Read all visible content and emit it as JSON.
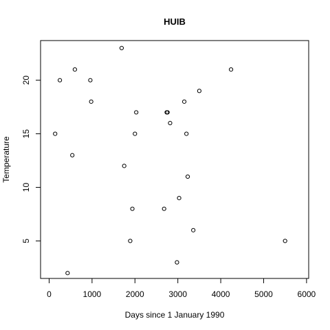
{
  "chart_data": {
    "type": "scatter",
    "title": "HUIB",
    "xlabel": "Days since 1 January 1990",
    "ylabel": "Temperature",
    "xlim": [
      -200,
      6050
    ],
    "ylim": [
      1.5,
      23.7
    ],
    "xticks": [
      0,
      1000,
      2000,
      3000,
      4000,
      5000,
      6000
    ],
    "yticks": [
      5,
      10,
      15,
      20
    ],
    "grid": false,
    "legend": "none",
    "marker": "open-circle",
    "points": [
      {
        "x": 140,
        "y": 15
      },
      {
        "x": 250,
        "y": 20
      },
      {
        "x": 430,
        "y": 2
      },
      {
        "x": 540,
        "y": 13
      },
      {
        "x": 600,
        "y": 21
      },
      {
        "x": 960,
        "y": 20
      },
      {
        "x": 980,
        "y": 18
      },
      {
        "x": 1690,
        "y": 23
      },
      {
        "x": 1750,
        "y": 12
      },
      {
        "x": 1890,
        "y": 5
      },
      {
        "x": 1940,
        "y": 8
      },
      {
        "x": 2000,
        "y": 15
      },
      {
        "x": 2030,
        "y": 17
      },
      {
        "x": 2680,
        "y": 8
      },
      {
        "x": 2740,
        "y": 17
      },
      {
        "x": 2760,
        "y": 17
      },
      {
        "x": 2820,
        "y": 16
      },
      {
        "x": 2980,
        "y": 3
      },
      {
        "x": 3030,
        "y": 9
      },
      {
        "x": 3150,
        "y": 18
      },
      {
        "x": 3200,
        "y": 15
      },
      {
        "x": 3230,
        "y": 11
      },
      {
        "x": 3360,
        "y": 6
      },
      {
        "x": 3500,
        "y": 19
      },
      {
        "x": 4240,
        "y": 21
      },
      {
        "x": 5500,
        "y": 5
      }
    ]
  }
}
